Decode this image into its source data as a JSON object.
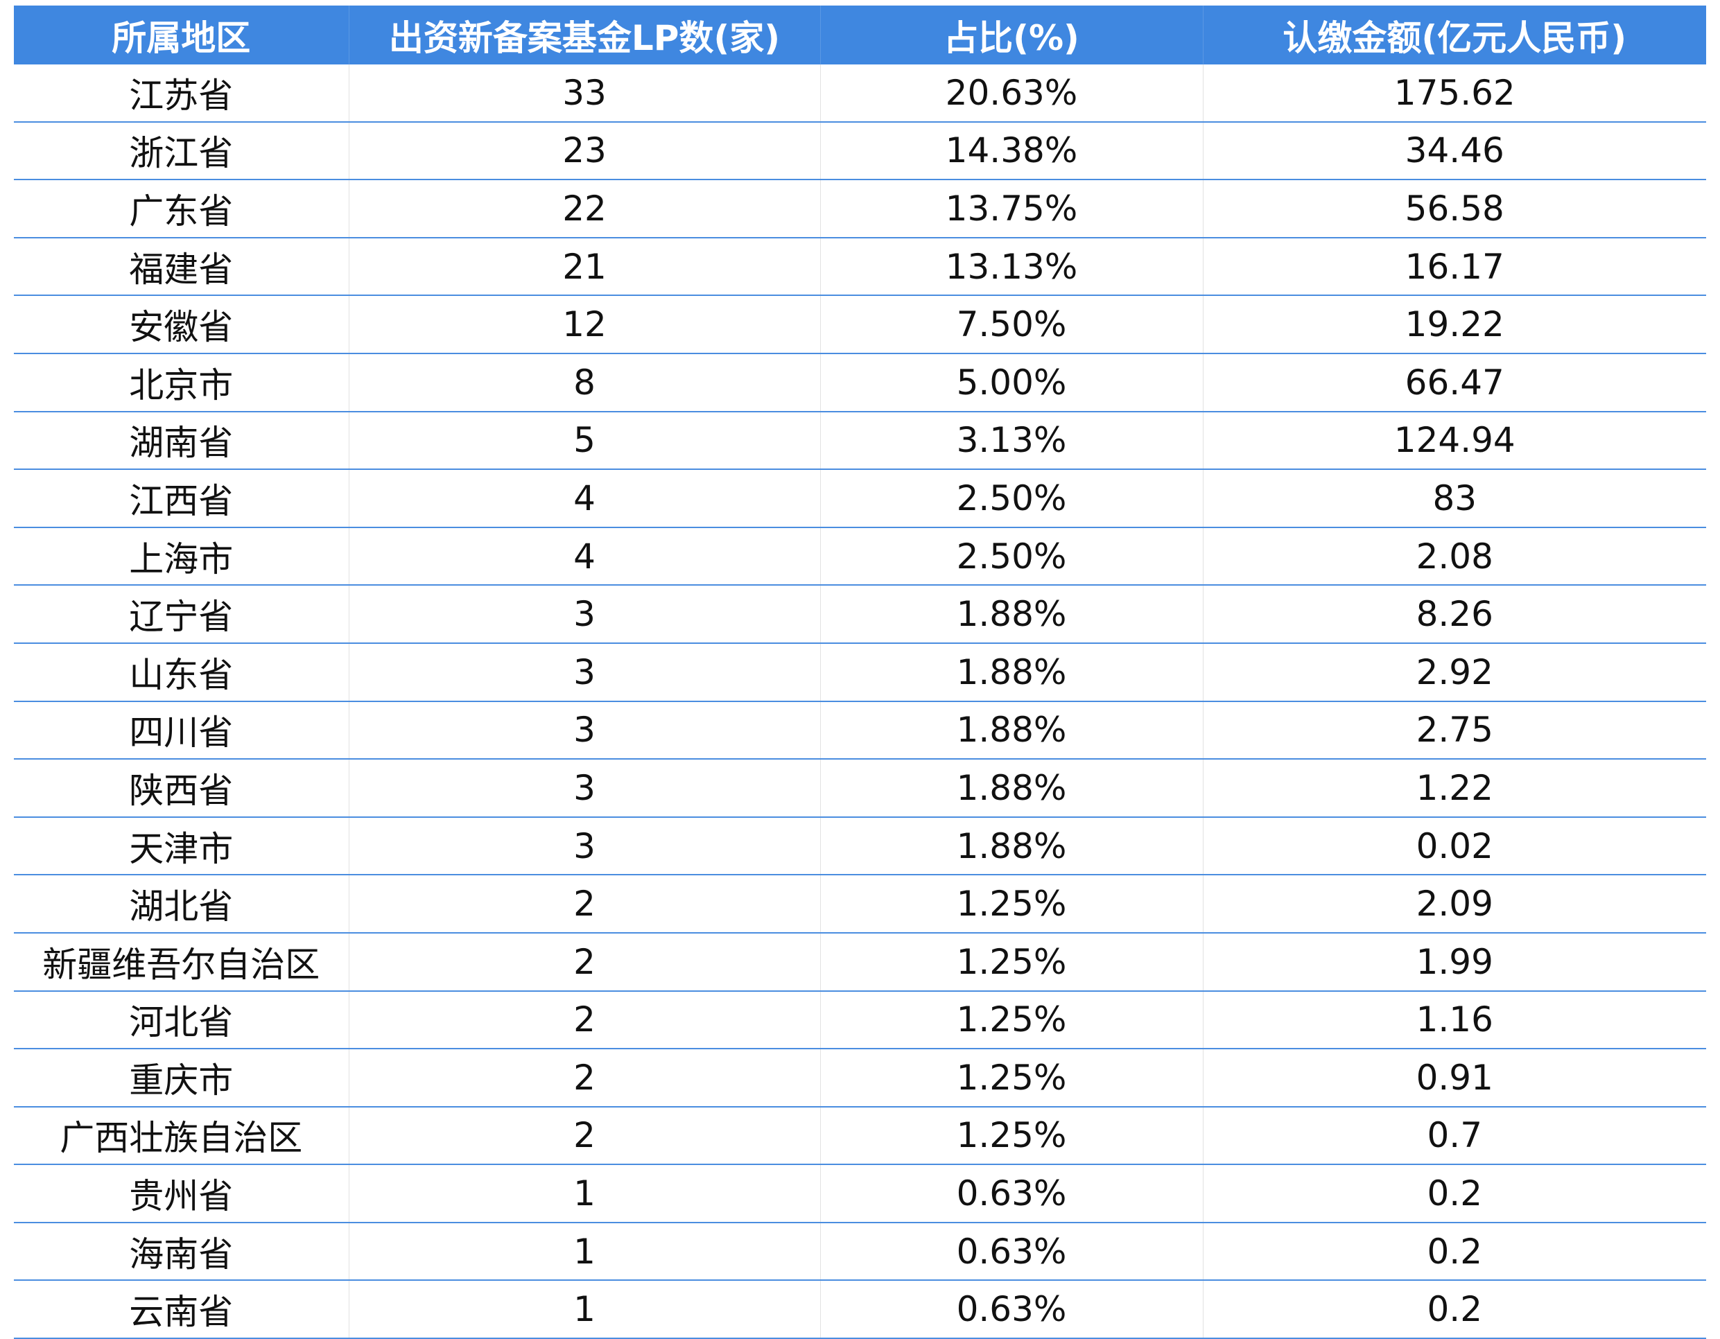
{
  "table": {
    "headers": [
      "所属地区",
      "出资新备案基金LP数(家)",
      "占比(%)",
      "认缴金额(亿元人民币)"
    ],
    "rows": [
      [
        "江苏省",
        "33",
        "20.63%",
        "175.62"
      ],
      [
        "浙江省",
        "23",
        "14.38%",
        "34.46"
      ],
      [
        "广东省",
        "22",
        "13.75%",
        "56.58"
      ],
      [
        "福建省",
        "21",
        "13.13%",
        "16.17"
      ],
      [
        "安徽省",
        "12",
        "7.50%",
        "19.22"
      ],
      [
        "北京市",
        "8",
        "5.00%",
        "66.47"
      ],
      [
        "湖南省",
        "5",
        "3.13%",
        "124.94"
      ],
      [
        "江西省",
        "4",
        "2.50%",
        "83"
      ],
      [
        "上海市",
        "4",
        "2.50%",
        "2.08"
      ],
      [
        "辽宁省",
        "3",
        "1.88%",
        "8.26"
      ],
      [
        "山东省",
        "3",
        "1.88%",
        "2.92"
      ],
      [
        "四川省",
        "3",
        "1.88%",
        "2.75"
      ],
      [
        "陕西省",
        "3",
        "1.88%",
        "1.22"
      ],
      [
        "天津市",
        "3",
        "1.88%",
        "0.02"
      ],
      [
        "湖北省",
        "2",
        "1.25%",
        "2.09"
      ],
      [
        "新疆维吾尔自治区",
        "2",
        "1.25%",
        "1.99"
      ],
      [
        "河北省",
        "2",
        "1.25%",
        "1.16"
      ],
      [
        "重庆市",
        "2",
        "1.25%",
        "0.91"
      ],
      [
        "广西壮族自治区",
        "2",
        "1.25%",
        "0.7"
      ],
      [
        "贵州省",
        "1",
        "0.63%",
        "0.2"
      ],
      [
        "海南省",
        "1",
        "0.63%",
        "0.2"
      ],
      [
        "云南省",
        "1",
        "0.63%",
        "0.2"
      ]
    ]
  },
  "colors": {
    "header_bg": "#3f87e0",
    "row_border": "#4a8de0"
  }
}
